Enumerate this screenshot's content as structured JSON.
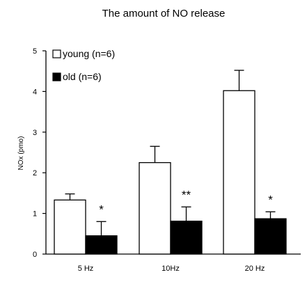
{
  "chart_data": {
    "type": "bar",
    "title": "The amount of NO release",
    "ylabel": "NOx (pmo)",
    "xlabel": "",
    "ylim": [
      0,
      5
    ],
    "yticks": [
      "0",
      "1",
      "2",
      "3",
      "4",
      "5"
    ],
    "categories": [
      "5 Hz",
      "10Hz",
      "20 Hz"
    ],
    "series": [
      {
        "name": "young (n=6)",
        "color": "#ffffff",
        "values": [
          1.33,
          2.25,
          4.02
        ],
        "errors": [
          0.15,
          0.4,
          0.5
        ]
      },
      {
        "name": "old (n=6)",
        "color": "#000000",
        "values": [
          0.45,
          0.81,
          0.87
        ],
        "errors": [
          0.35,
          0.35,
          0.17
        ]
      }
    ],
    "annotations": [
      "*",
      "**",
      "*"
    ],
    "legend_position": "top-left",
    "grid": false
  }
}
